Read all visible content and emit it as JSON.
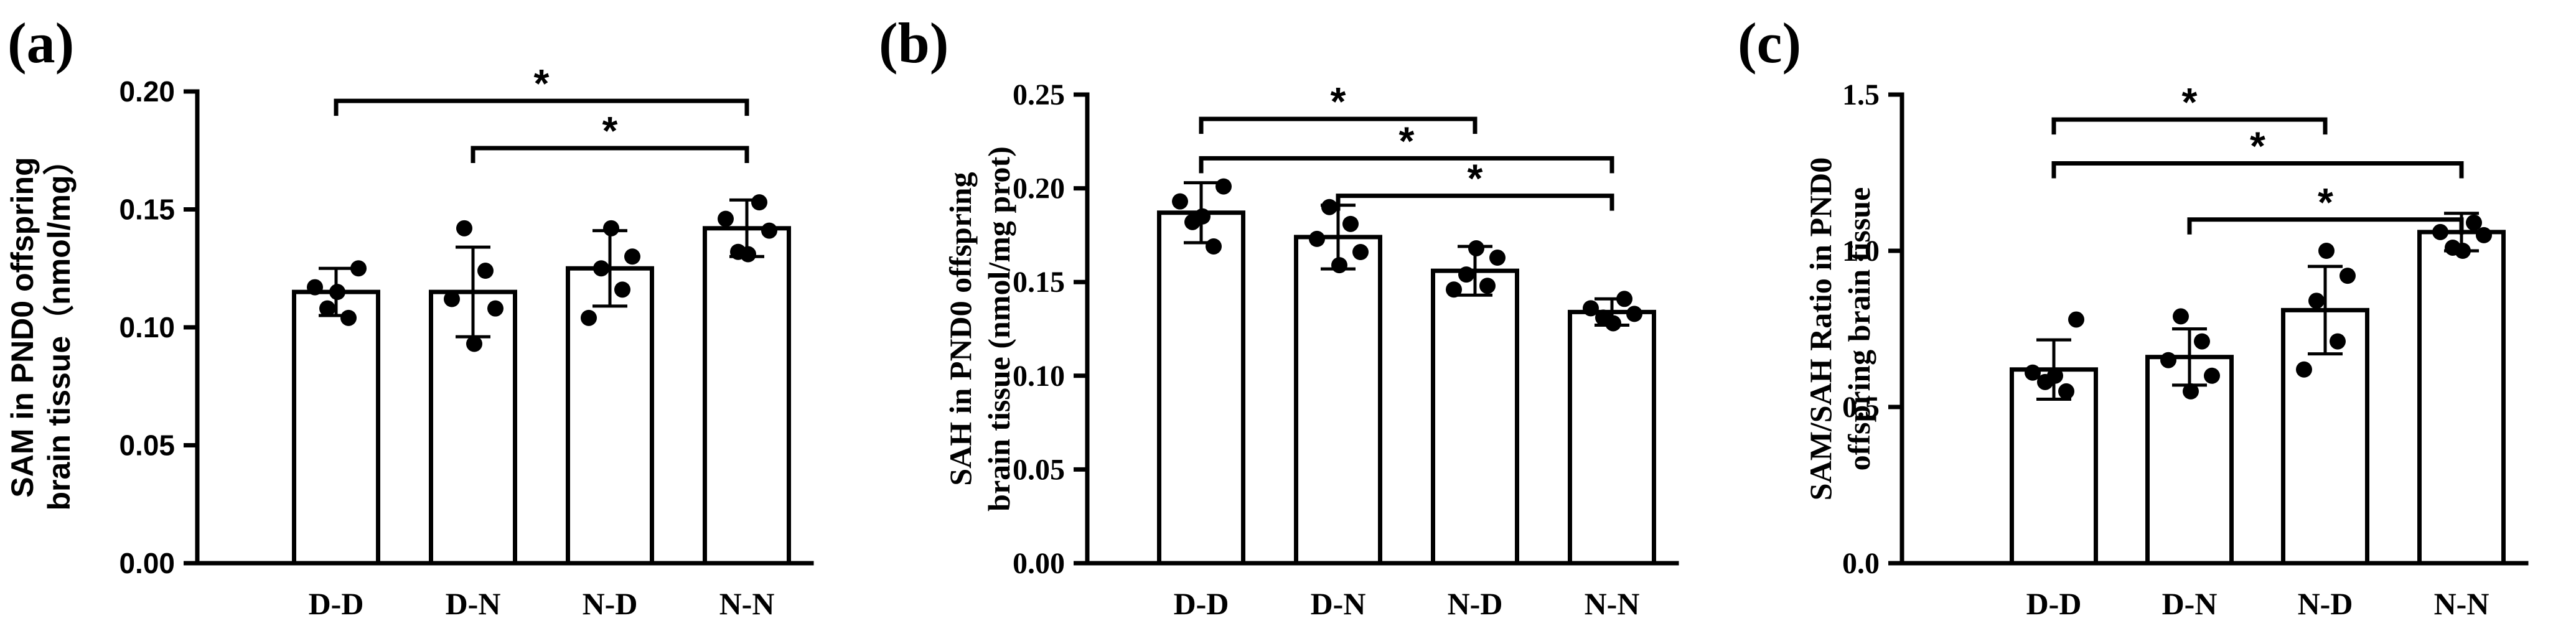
{
  "chart_data": [
    {
      "type": "bar",
      "panel": "(a)",
      "categories": [
        "D-D",
        "D-N",
        "N-D",
        "N-N"
      ],
      "ylabel_lines": [
        "SAM in PND0 offspring",
        "brain tissue（nmol/mg）"
      ],
      "ylim": [
        0,
        0.2
      ],
      "yticks": [
        "0.00",
        "0.05",
        "0.10",
        "0.15",
        "0.20"
      ],
      "tick_step": 0.05,
      "means": [
        0.115,
        0.115,
        0.125,
        0.142
      ],
      "errors": [
        0.01,
        0.019,
        0.016,
        0.012
      ],
      "points": [
        [
          0.125,
          0.117,
          0.115,
          0.108,
          0.104
        ],
        [
          0.142,
          0.124,
          0.112,
          0.108,
          0.093
        ],
        [
          0.142,
          0.13,
          0.125,
          0.116,
          0.104
        ],
        [
          0.153,
          0.146,
          0.141,
          0.132,
          0.131
        ]
      ],
      "significance": [
        {
          "from": 0,
          "to": 3,
          "level": 0.196,
          "label": "*"
        },
        {
          "from": 1,
          "to": 3,
          "level": 0.176,
          "label": "*"
        }
      ]
    },
    {
      "type": "bar",
      "panel": "(b)",
      "categories": [
        "D-D",
        "D-N",
        "N-D",
        "N-N"
      ],
      "ylabel_lines": [
        "SAH in PND0 offspring",
        "brain tissue (nmol/mg prot)"
      ],
      "ylim": [
        0,
        0.25
      ],
      "yticks": [
        "0.00",
        "0.05",
        "0.10",
        "0.15",
        "0.20",
        "0.25"
      ],
      "tick_step": 0.05,
      "means": [
        0.187,
        0.174,
        0.156,
        0.134
      ],
      "errors": [
        0.016,
        0.017,
        0.013,
        0.007
      ],
      "points": [
        [
          0.201,
          0.193,
          0.185,
          0.182,
          0.169
        ],
        [
          0.19,
          0.181,
          0.173,
          0.166,
          0.159
        ],
        [
          0.168,
          0.163,
          0.154,
          0.148,
          0.146
        ],
        [
          0.141,
          0.136,
          0.133,
          0.131,
          0.128
        ]
      ],
      "significance": [
        {
          "from": 0,
          "to": 2,
          "level": 0.237,
          "label": "*"
        },
        {
          "from": 0,
          "to": 3,
          "level": 0.216,
          "label": "*"
        },
        {
          "from": 1,
          "to": 3,
          "level": 0.196,
          "label": "*"
        }
      ]
    },
    {
      "type": "bar",
      "panel": "(c)",
      "categories": [
        "D-D",
        "D-N",
        "N-D",
        "N-N"
      ],
      "ylabel_lines": [
        "SAM/SAH Ratio in PND0",
        "offspring brain tissue"
      ],
      "ylim": [
        0,
        1.5
      ],
      "yticks": [
        "0.0",
        "0.5",
        "1.0",
        "1.5"
      ],
      "tick_step": 0.5,
      "means": [
        0.62,
        0.66,
        0.81,
        1.06
      ],
      "errors": [
        0.095,
        0.09,
        0.14,
        0.06
      ],
      "points": [
        [
          0.78,
          0.61,
          0.6,
          0.58,
          0.55
        ],
        [
          0.79,
          0.71,
          0.65,
          0.6,
          0.55
        ],
        [
          1.0,
          0.92,
          0.84,
          0.71,
          0.62
        ],
        [
          1.09,
          1.06,
          1.05,
          1.01,
          1.0
        ]
      ],
      "significance": [
        {
          "from": 0,
          "to": 2,
          "level": 1.42,
          "label": "*"
        },
        {
          "from": 0,
          "to": 3,
          "level": 1.28,
          "label": "*"
        },
        {
          "from": 1,
          "to": 3,
          "level": 1.1,
          "label": "*"
        }
      ]
    }
  ]
}
